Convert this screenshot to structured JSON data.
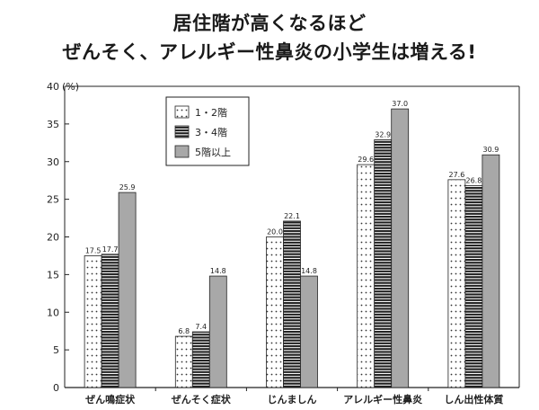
{
  "title_line1": "居住階が高くなるほど",
  "title_line2": "ぜんそく、アレルギー性鼻炎の小学生は増える!",
  "chart_data": {
    "type": "bar",
    "title": "居住階が高くなるほど ぜんそく、アレルギー性鼻炎の小学生は増える!",
    "ylabel_unit": "(%)",
    "ylim": [
      0,
      40
    ],
    "yticks": [
      0,
      5,
      10,
      15,
      20,
      25,
      30,
      35,
      40
    ],
    "grid": false,
    "legend_position": "top-left",
    "categories": [
      "ぜん鳴症状",
      "ぜんそく症状",
      "じんましん",
      "アレルギー性鼻炎",
      "しん出性体質"
    ],
    "series": [
      {
        "name": "1・2階",
        "pattern": "dotted",
        "color": "#ffffff",
        "values": [
          17.5,
          6.8,
          20.0,
          29.6,
          27.6
        ]
      },
      {
        "name": "3・4階",
        "pattern": "striped",
        "color": "#222222",
        "values": [
          17.7,
          7.4,
          22.1,
          32.9,
          26.8
        ]
      },
      {
        "name": "5階以上",
        "pattern": "solid",
        "color": "#a8a8a8",
        "values": [
          25.9,
          14.8,
          14.8,
          37.0,
          30.9
        ]
      }
    ]
  }
}
